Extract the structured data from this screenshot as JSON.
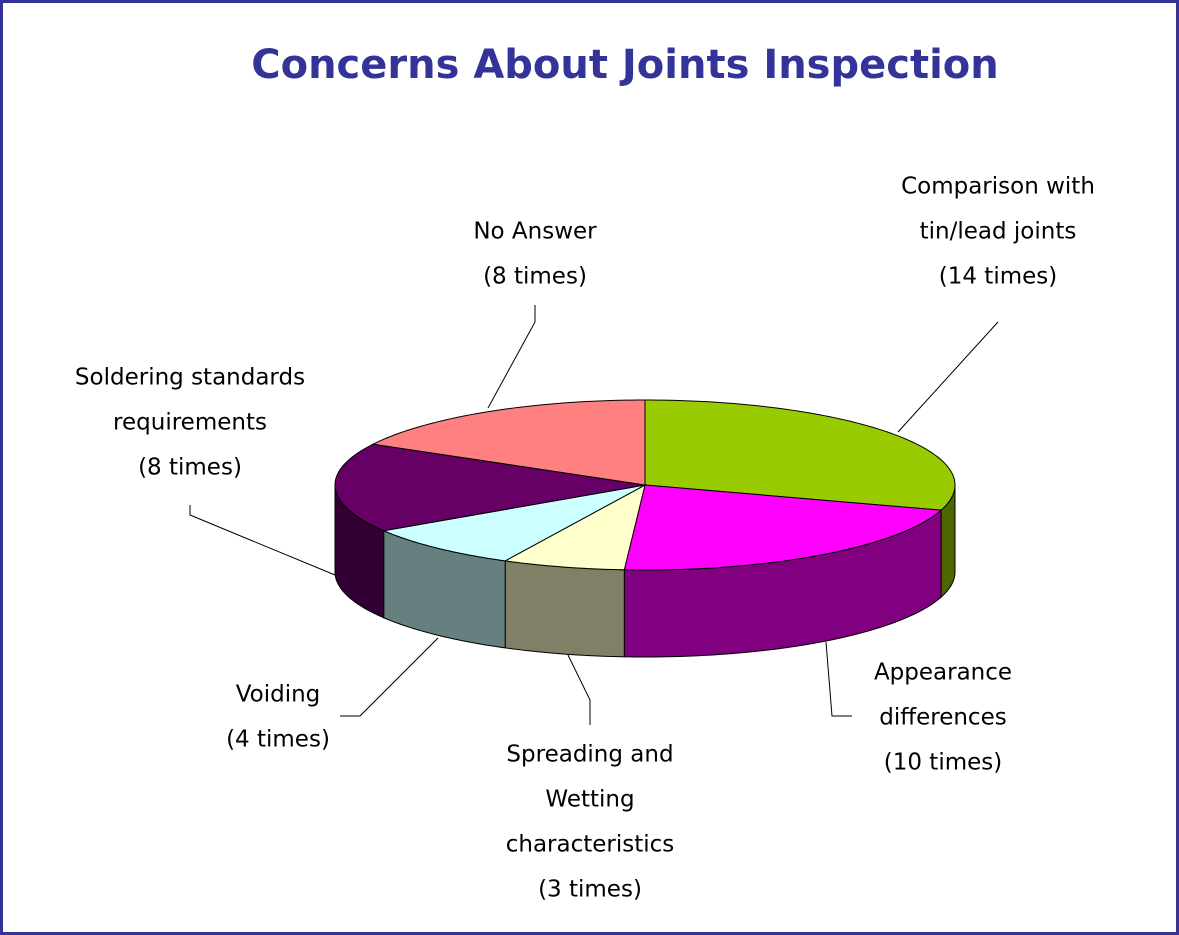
{
  "chart_data": {
    "type": "pie3d",
    "title": "Concerns About Joints Inspection",
    "categories": [
      [
        "Comparison with",
        "tin/lead joints"
      ],
      [
        "Appearance",
        "differences"
      ],
      [
        "Spreading and",
        "Wetting",
        "characteristics"
      ],
      [
        "Voiding"
      ],
      [
        "Soldering standards",
        "requirements"
      ],
      [
        "No Answer"
      ]
    ],
    "values": [
      14,
      10,
      3,
      4,
      8,
      8
    ],
    "value_labels": [
      "(14 times)",
      "(10 times)",
      "(3 times)",
      "(4 times)",
      "(8 times)",
      "(8 times)"
    ],
    "colors": [
      "#99cc00",
      "#ff00ff",
      "#ffffcc",
      "#ccffff",
      "#660066",
      "#ff8080"
    ],
    "side_colors": [
      "#4d6600",
      "#800080",
      "#808066",
      "#668080",
      "#330033",
      "#804040"
    ]
  }
}
